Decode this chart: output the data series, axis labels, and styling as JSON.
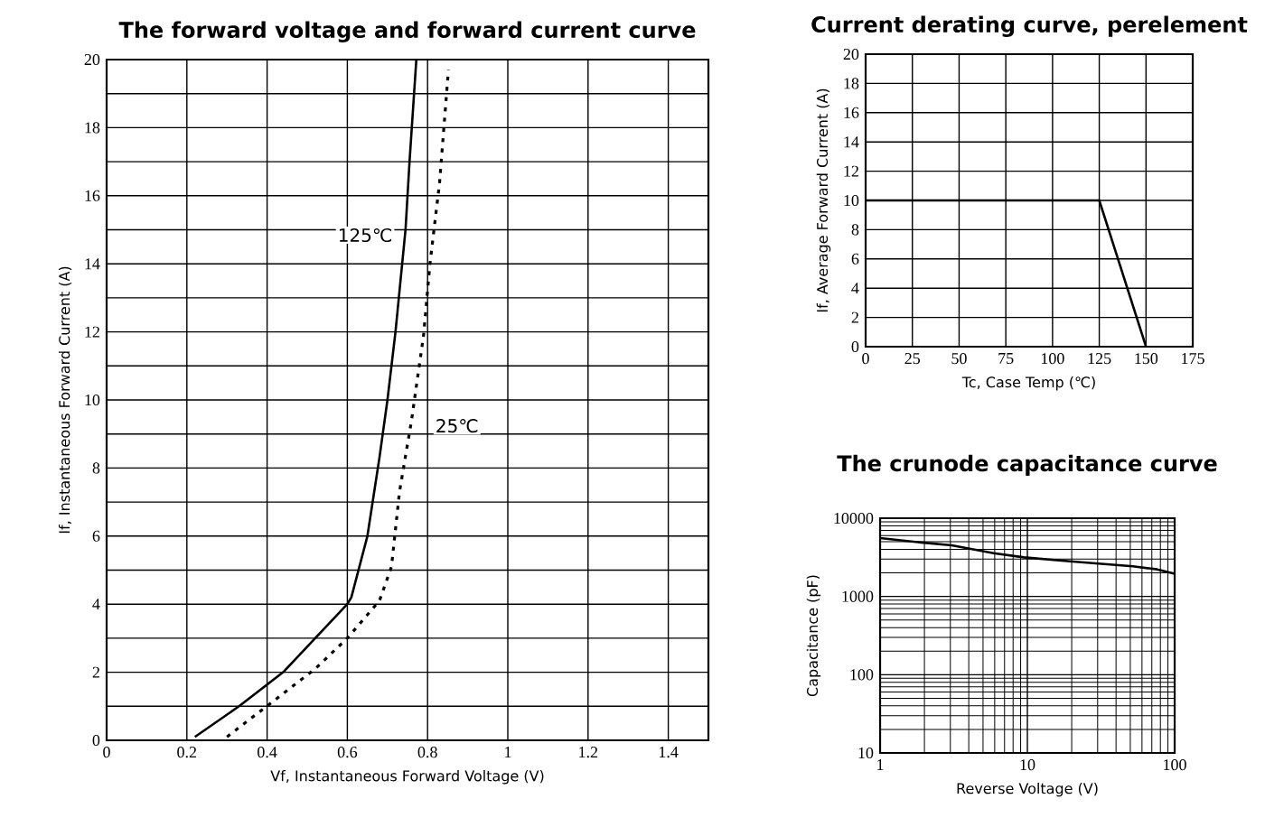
{
  "chart_data": [
    {
      "type": "line",
      "title": "The forward voltage and forward current curve",
      "xlabel": "Vf, Instantaneous Forward Voltage (V)",
      "ylabel": "If, Instantaneous Forward Current (A)",
      "xlim": [
        0,
        1.5
      ],
      "ylim": [
        0,
        20
      ],
      "xticks": [
        0,
        0.2,
        0.4,
        0.6,
        0.8,
        1,
        1.2,
        1.4
      ],
      "yticks": [
        0,
        {
          "value": 1,
          "label": null
        },
        2,
        {
          "value": 3,
          "label": null
        },
        4,
        {
          "value": 5,
          "label": null
        },
        6,
        {
          "value": 7,
          "label": null
        },
        8,
        {
          "value": 9,
          "label": null
        },
        10,
        {
          "value": 11,
          "label": null
        },
        12,
        {
          "value": 13,
          "label": null
        },
        14,
        {
          "value": 15,
          "label": null
        },
        16,
        {
          "value": 17,
          "label": null
        },
        18,
        {
          "value": 19,
          "label": null
        },
        20
      ],
      "grid": true,
      "series": [
        {
          "name": "125℃",
          "color": "#000000",
          "line_style": "solid",
          "x": [
            0.22,
            0.33,
            0.44,
            0.52,
            0.6,
            0.61,
            0.65,
            0.68,
            0.7,
            0.72,
            0.745,
            0.755,
            0.772
          ],
          "values": [
            0.1,
            1,
            2,
            3,
            4,
            4.2,
            6,
            8.3,
            10,
            12,
            15,
            17,
            20
          ]
        },
        {
          "name": "25℃",
          "color": "#000000",
          "line_style": "dotted",
          "x": [
            0.3,
            0.41,
            0.52,
            0.6,
            0.68,
            0.71,
            0.73,
            0.76,
            0.79,
            0.806,
            0.83,
            0.852
          ],
          "values": [
            0.1,
            1.1,
            2.1,
            3,
            4.1,
            5.1,
            7.3,
            9.4,
            11.9,
            14,
            16.4,
            19.7
          ]
        }
      ]
    },
    {
      "type": "line",
      "title": "Current derating curve, perelement",
      "xlabel": "Tc, Case Temp (℃)",
      "ylabel": "If, Average Forward Current (A)",
      "xlim": [
        0,
        175
      ],
      "ylim": [
        0,
        20
      ],
      "xticks": [
        0,
        25,
        50,
        75,
        100,
        125,
        150,
        175
      ],
      "yticks": [
        0,
        2,
        4,
        6,
        8,
        10,
        12,
        14,
        16,
        18,
        20
      ],
      "grid": true,
      "series": [
        {
          "color": "#000000",
          "line_style": "solid",
          "x": [
            0,
            125,
            150
          ],
          "values": [
            10,
            10,
            0
          ]
        }
      ]
    },
    {
      "type": "line",
      "title": "The crunode capacitance curve",
      "xlabel": "Reverse Voltage (V)",
      "ylabel": "Capacitance (pF)",
      "log": "xy",
      "xlim": [
        1,
        100
      ],
      "ylim": [
        10,
        10000
      ],
      "xticks": [
        1,
        10,
        100
      ],
      "yticks": [
        10,
        100,
        1000,
        10000
      ],
      "grid": true,
      "series": [
        {
          "color": "#000000",
          "line_style": "solid",
          "x": [
            1,
            1.9,
            3.06,
            5.9,
            9.5,
            20.3,
            52,
            76,
            100
          ],
          "values": [
            5570,
            4900,
            4510,
            3580,
            3160,
            2790,
            2430,
            2220,
            1950
          ]
        }
      ]
    }
  ]
}
